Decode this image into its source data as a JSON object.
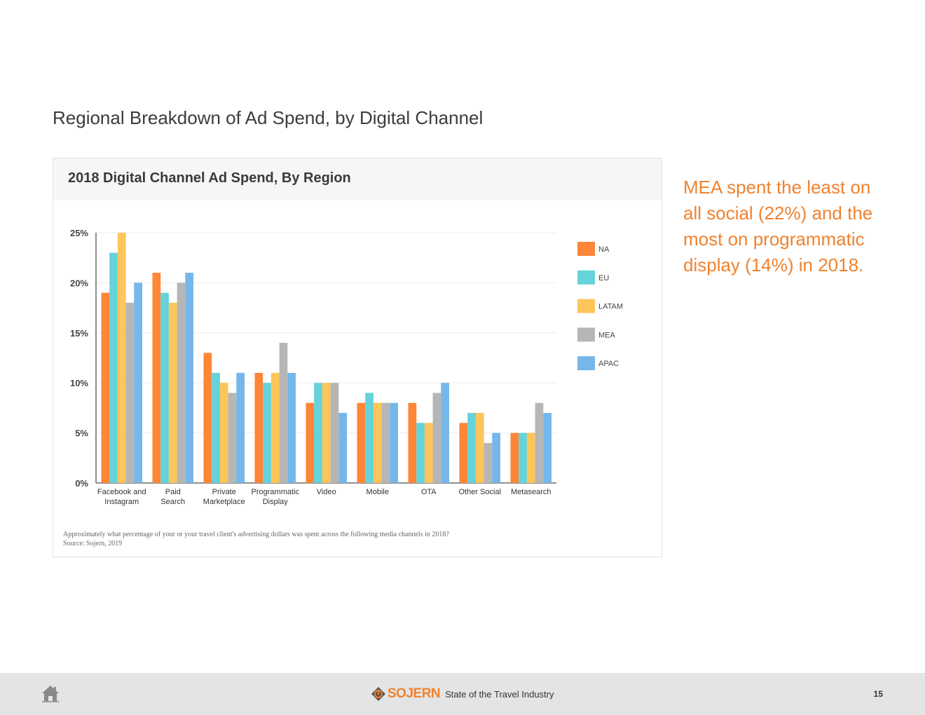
{
  "page": {
    "title": "Regional Breakdown of Ad Spend, by Digital Channel",
    "insight": "MEA spent the least on all social (22%) and the most on programmatic display (14%) in 2018."
  },
  "chart_card": {
    "title": "2018 Digital Channel Ad Spend, By Region",
    "question": "Approximately what percentage of your or your travel client's advertising dollars was spent across the following media channels in 2018?",
    "source": "Source: Sojern, 2019"
  },
  "chart_data": {
    "type": "bar",
    "title": "2018 Digital Channel Ad Spend, By Region",
    "xlabel": "",
    "ylabel": "",
    "ylim": [
      0,
      25
    ],
    "yticks": [
      0,
      5,
      10,
      15,
      20,
      25
    ],
    "ytick_labels": [
      "0%",
      "5%",
      "10%",
      "15%",
      "20%",
      "25%"
    ],
    "grid": true,
    "legend_position": "right",
    "categories": [
      "Facebook and Instagram",
      "Paid Search",
      "Private Marketplace",
      "Programmatic Display",
      "Video",
      "Mobile",
      "OTA",
      "Other Social",
      "Metasearch"
    ],
    "category_lines": [
      [
        "Facebook and",
        "Instagram"
      ],
      [
        "Paid",
        "Search"
      ],
      [
        "Private",
        "Marketplace"
      ],
      [
        "Programmatic",
        "Display"
      ],
      [
        "Video"
      ],
      [
        "Mobile"
      ],
      [
        "OTA"
      ],
      [
        "Other Social"
      ],
      [
        "Metasearch"
      ]
    ],
    "series": [
      {
        "name": "NA",
        "color": "#fd8637",
        "values": [
          19,
          21,
          13,
          11,
          8,
          8,
          8,
          6,
          5
        ]
      },
      {
        "name": "EU",
        "color": "#66d2d9",
        "values": [
          23,
          19,
          11,
          10,
          10,
          9,
          6,
          7,
          5
        ]
      },
      {
        "name": "LATAM",
        "color": "#fdc55a",
        "values": [
          25,
          18,
          10,
          11,
          10,
          8,
          6,
          7,
          5
        ]
      },
      {
        "name": "MEA",
        "color": "#b6b6b6",
        "values": [
          18,
          20,
          9,
          14,
          10,
          8,
          9,
          4,
          8
        ]
      },
      {
        "name": "APAC",
        "color": "#75b7ea",
        "values": [
          20,
          21,
          11,
          11,
          7,
          8,
          10,
          5,
          7
        ]
      }
    ]
  },
  "footer": {
    "brand": "SOJERN",
    "tagline": "State of the Travel Industry",
    "page_number": "15",
    "home_icon": "home-icon",
    "brand_color": "#f0822f"
  }
}
